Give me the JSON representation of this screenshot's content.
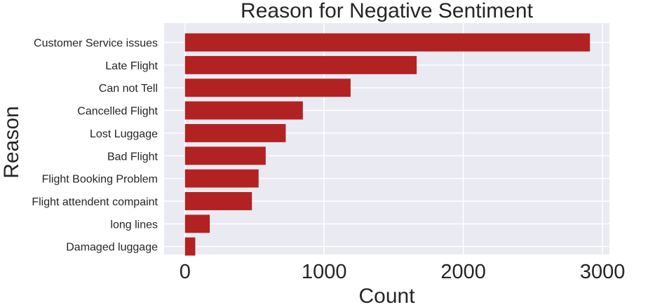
{
  "chart_data": {
    "type": "bar",
    "orientation": "horizontal",
    "title": "Reason for Negative Sentiment",
    "xlabel": "Count",
    "ylabel": "Reason",
    "categories": [
      "Customer Service issues",
      "Late Flight",
      "Can not Tell",
      "Cancelled Flight",
      "Lost Luggage",
      "Bad Flight",
      "Flight Booking Problem",
      "Flight attendent compaint",
      "long lines",
      "Damaged luggage"
    ],
    "values": [
      2910,
      1665,
      1190,
      847,
      724,
      580,
      529,
      481,
      178,
      74
    ],
    "xlim": [
      -150,
      3050
    ],
    "xticks": [
      0,
      1000,
      2000,
      3000
    ],
    "xtick_labels": [
      "0",
      "1000",
      "2000",
      "3000"
    ],
    "bar_color": "#b22222",
    "background_color": "#eaeaf2",
    "grid_color": "#ffffff",
    "grid": true
  }
}
